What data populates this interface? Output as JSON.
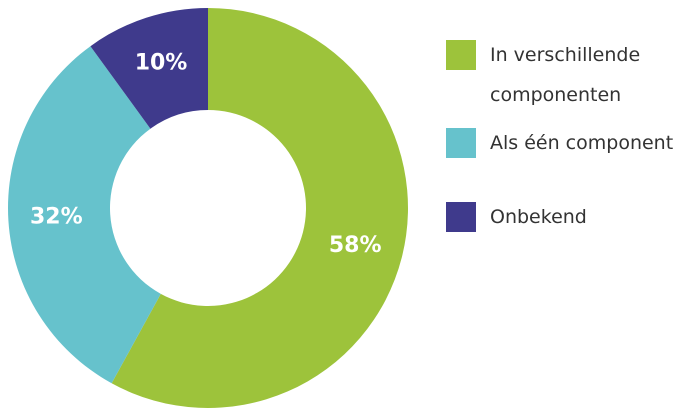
{
  "chart_data": {
    "type": "pie",
    "categories": [
      "In verschillende componenten",
      "Als één component",
      "Onbekend"
    ],
    "values": [
      58,
      32,
      10
    ],
    "value_labels": [
      "58%",
      "32%",
      "10%"
    ],
    "colors": [
      "#9dc33b",
      "#66c2cc",
      "#3f3a8c"
    ]
  }
}
